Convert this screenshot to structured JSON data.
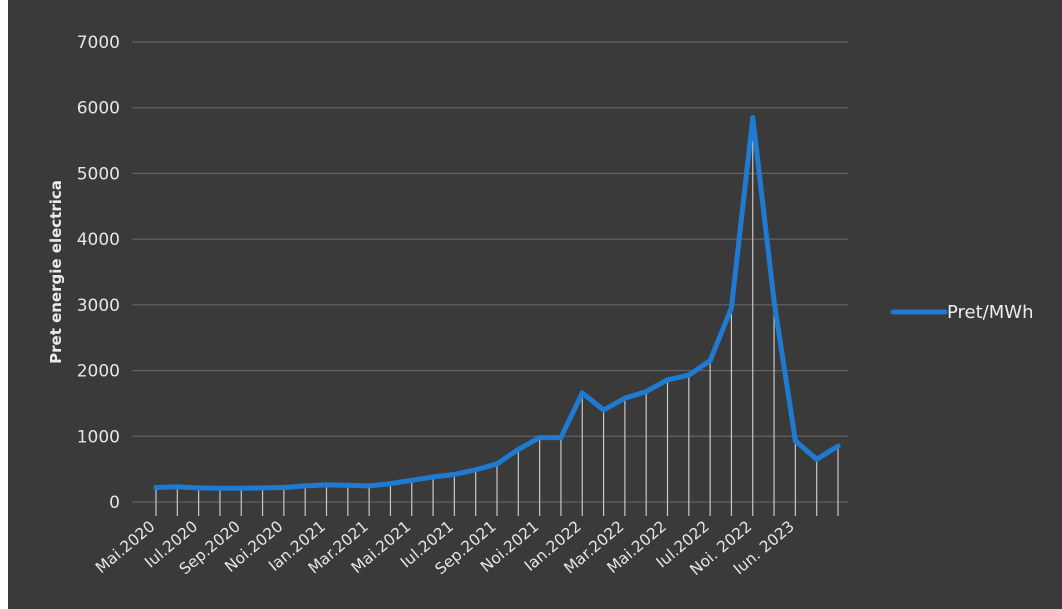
{
  "chart_data": {
    "type": "line",
    "title": "",
    "xlabel": "",
    "ylabel": "Pret energie electrica",
    "ylim": [
      0,
      7000
    ],
    "yticks": [
      0,
      1000,
      2000,
      3000,
      4000,
      5000,
      6000,
      7000
    ],
    "grid": true,
    "drop_lines": true,
    "legend_position": "right",
    "tick_labels": [
      "Mai.2020",
      "Iul.2020",
      "Sep.2020",
      "Noi.2020",
      "Ian.2021",
      "Mar.2021",
      "Mai.2021",
      "Iul.2021",
      "Sep.2021",
      "Noi.2021",
      "Ian.2022",
      "Mar.2022",
      "Mai.2022",
      "Iul.2022",
      "Noi. 2022",
      "Iun. 2023"
    ],
    "tick_label_points": [
      0,
      2,
      4,
      6,
      8,
      10,
      12,
      14,
      16,
      18,
      20,
      22,
      24,
      26,
      28,
      30
    ],
    "series": [
      {
        "name": "Pret/MWh",
        "color": "#1f7bd1",
        "values": [
          220,
          230,
          215,
          210,
          210,
          215,
          220,
          245,
          260,
          255,
          245,
          280,
          330,
          380,
          420,
          490,
          580,
          800,
          980,
          980,
          1660,
          1400,
          1580,
          1680,
          1860,
          1930,
          2150,
          2950,
          5850,
          3050,
          930,
          650,
          850
        ]
      }
    ]
  }
}
